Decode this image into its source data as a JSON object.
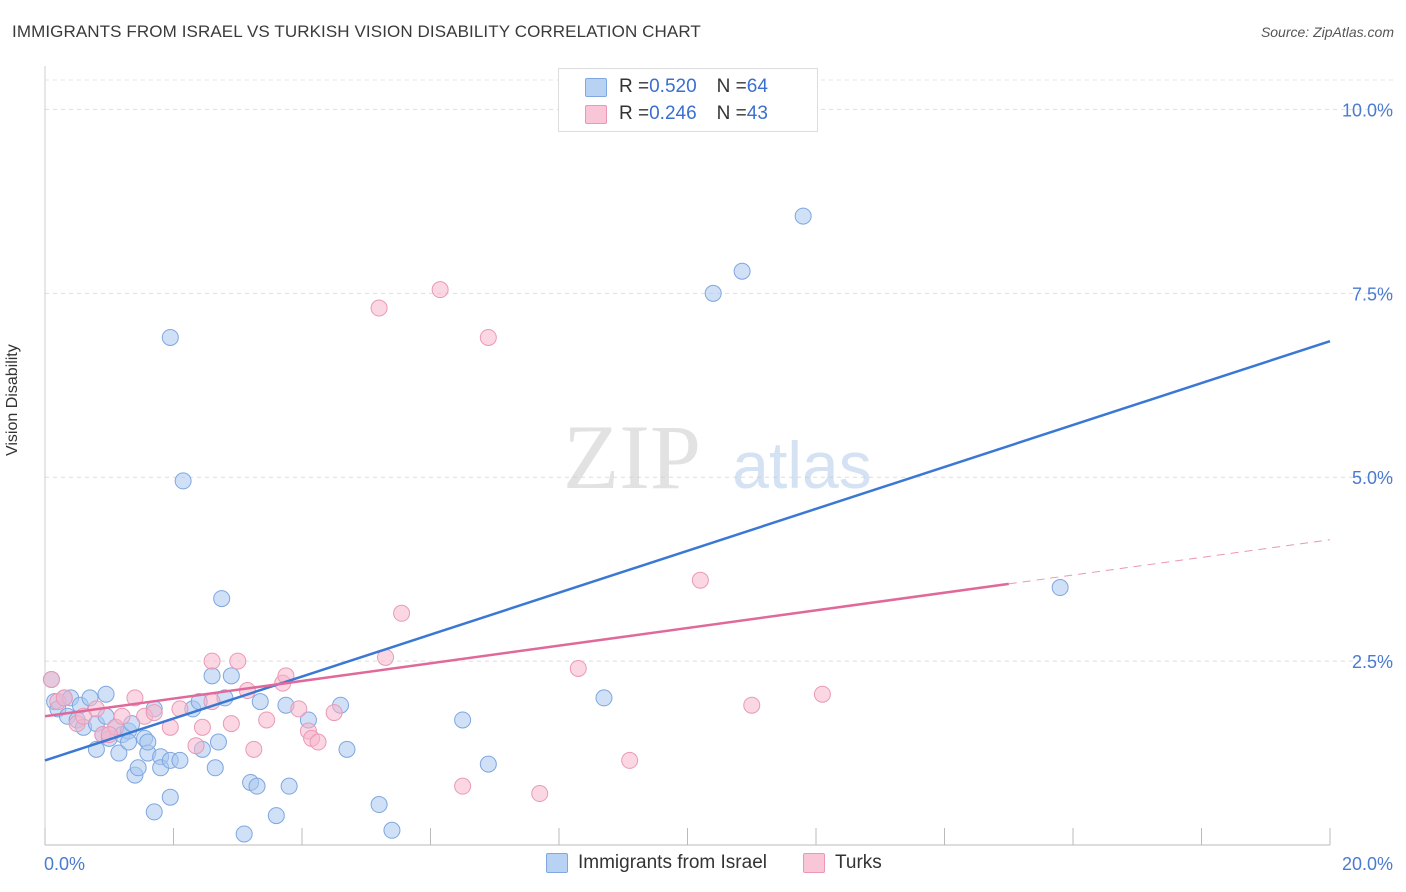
{
  "title": "IMMIGRANTS FROM ISRAEL VS TURKISH VISION DISABILITY CORRELATION CHART",
  "source": "Source: ZipAtlas.com",
  "watermark": {
    "zip": "ZIP",
    "atlas": "atlas"
  },
  "legend": {
    "blue": {
      "r_label": "R = ",
      "r": "0.520",
      "n_label": "N = ",
      "n": "64"
    },
    "pink": {
      "r_label": "R = ",
      "r": "0.246",
      "n_label": "N = ",
      "n": "43"
    }
  },
  "bottom_legend": {
    "blue": "Immigrants from Israel",
    "pink": "Turks"
  },
  "colors": {
    "blue": "#3a78d4",
    "blue_fill": "#a9c8f0",
    "pink": "#e0699a",
    "pink_fill": "#f6b7cc",
    "tick_label": "#4a7bd0"
  },
  "chart_data": {
    "type": "scatter",
    "title": "IMMIGRANTS FROM ISRAEL VS TURKISH VISION DISABILITY CORRELATION CHART",
    "xlabel": "",
    "ylabel": "Vision Disability",
    "xlim": [
      0,
      20
    ],
    "ylim": [
      0,
      10.4
    ],
    "x_tick_labels": [
      "0.0%",
      "20.0%"
    ],
    "y_ticks": [
      2.5,
      5.0,
      7.5,
      10.0
    ],
    "y_tick_labels": [
      "2.5%",
      "5.0%",
      "7.5%",
      "10.0%"
    ],
    "grid": true,
    "legend_position": "top-center",
    "series": [
      {
        "name": "Immigrants from Israel",
        "color": "#3a78d4",
        "points": [
          [
            0.1,
            2.25
          ],
          [
            0.15,
            1.95
          ],
          [
            0.2,
            1.85
          ],
          [
            0.3,
            2.0
          ],
          [
            0.35,
            1.75
          ],
          [
            0.4,
            2.0
          ],
          [
            0.5,
            1.7
          ],
          [
            0.6,
            1.6
          ],
          [
            0.55,
            1.9
          ],
          [
            0.7,
            2.0
          ],
          [
            0.8,
            1.65
          ],
          [
            0.9,
            1.5
          ],
          [
            0.8,
            1.3
          ],
          [
            0.95,
            1.75
          ],
          [
            1.0,
            1.45
          ],
          [
            0.95,
            2.05
          ],
          [
            1.1,
            1.6
          ],
          [
            1.2,
            1.5
          ],
          [
            1.15,
            1.25
          ],
          [
            1.3,
            1.55
          ],
          [
            1.3,
            1.4
          ],
          [
            1.4,
            0.95
          ],
          [
            1.45,
            1.05
          ],
          [
            1.55,
            1.45
          ],
          [
            1.6,
            1.25
          ],
          [
            1.6,
            1.4
          ],
          [
            1.7,
            0.45
          ],
          [
            1.7,
            1.85
          ],
          [
            1.8,
            1.2
          ],
          [
            1.8,
            1.05
          ],
          [
            1.95,
            1.15
          ],
          [
            1.95,
            0.65
          ],
          [
            2.1,
            1.15
          ],
          [
            2.15,
            4.95
          ],
          [
            1.95,
            6.9
          ],
          [
            2.3,
            1.85
          ],
          [
            2.4,
            1.95
          ],
          [
            2.45,
            1.3
          ],
          [
            2.6,
            2.3
          ],
          [
            2.65,
            1.05
          ],
          [
            2.7,
            1.4
          ],
          [
            2.75,
            3.35
          ],
          [
            2.8,
            2.0
          ],
          [
            2.9,
            2.3
          ],
          [
            3.1,
            0.15
          ],
          [
            3.2,
            0.85
          ],
          [
            3.3,
            0.8
          ],
          [
            3.35,
            1.95
          ],
          [
            3.6,
            0.4
          ],
          [
            3.8,
            0.8
          ],
          [
            3.75,
            1.9
          ],
          [
            4.1,
            1.7
          ],
          [
            4.6,
            1.9
          ],
          [
            4.7,
            1.3
          ],
          [
            5.2,
            0.55
          ],
          [
            5.4,
            0.2
          ],
          [
            6.5,
            1.7
          ],
          [
            6.9,
            1.1
          ],
          [
            8.7,
            2.0
          ],
          [
            10.4,
            7.5
          ],
          [
            10.85,
            7.8
          ],
          [
            11.8,
            8.55
          ],
          [
            15.8,
            3.5
          ],
          [
            1.35,
            1.65
          ]
        ],
        "trend": {
          "x": [
            0,
            20
          ],
          "y": [
            1.15,
            6.85
          ],
          "dashed_from": null
        }
      },
      {
        "name": "Turks",
        "color": "#e0699a",
        "points": [
          [
            0.1,
            2.25
          ],
          [
            0.2,
            1.95
          ],
          [
            0.3,
            2.0
          ],
          [
            0.5,
            1.65
          ],
          [
            0.6,
            1.75
          ],
          [
            0.8,
            1.85
          ],
          [
            0.9,
            1.5
          ],
          [
            1.1,
            1.6
          ],
          [
            1.2,
            1.75
          ],
          [
            1.4,
            2.0
          ],
          [
            1.55,
            1.75
          ],
          [
            1.7,
            1.8
          ],
          [
            1.95,
            1.6
          ],
          [
            2.1,
            1.85
          ],
          [
            2.35,
            1.35
          ],
          [
            2.45,
            1.6
          ],
          [
            2.6,
            2.5
          ],
          [
            2.6,
            1.95
          ],
          [
            2.9,
            1.65
          ],
          [
            3.0,
            2.5
          ],
          [
            3.15,
            2.1
          ],
          [
            3.25,
            1.3
          ],
          [
            3.45,
            1.7
          ],
          [
            3.7,
            2.2
          ],
          [
            3.75,
            2.3
          ],
          [
            3.95,
            1.85
          ],
          [
            4.1,
            1.55
          ],
          [
            4.15,
            1.45
          ],
          [
            4.25,
            1.4
          ],
          [
            4.5,
            1.8
          ],
          [
            5.2,
            7.3
          ],
          [
            5.3,
            2.55
          ],
          [
            5.55,
            3.15
          ],
          [
            6.15,
            7.55
          ],
          [
            6.5,
            0.8
          ],
          [
            6.9,
            6.9
          ],
          [
            7.7,
            0.7
          ],
          [
            8.3,
            2.4
          ],
          [
            9.1,
            1.15
          ],
          [
            10.2,
            3.6
          ],
          [
            11.0,
            1.9
          ],
          [
            12.1,
            2.05
          ],
          [
            1.0,
            1.5
          ]
        ],
        "trend": {
          "x": [
            0,
            20
          ],
          "y": [
            1.75,
            4.15
          ],
          "dashed_from": 15.0
        }
      }
    ]
  }
}
